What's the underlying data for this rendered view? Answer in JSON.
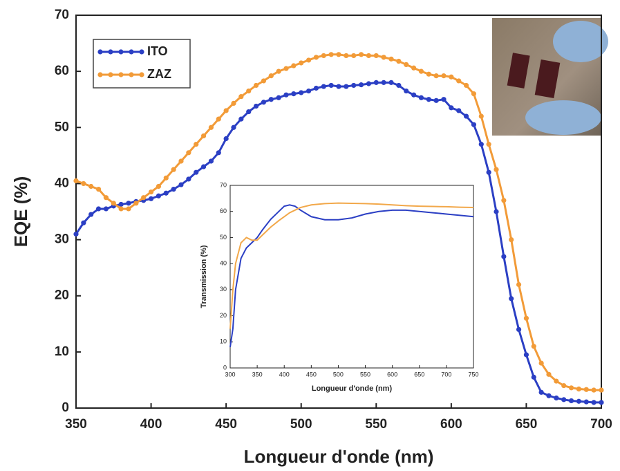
{
  "chart_data": [
    {
      "type": "line",
      "markers": true,
      "x_label": "Longueur d'onde (nm)",
      "y_label": "EQE (%)",
      "legend": "upper left",
      "x": [
        350,
        355,
        360,
        365,
        370,
        375,
        380,
        385,
        390,
        395,
        400,
        405,
        410,
        415,
        420,
        425,
        430,
        435,
        440,
        445,
        450,
        455,
        460,
        465,
        470,
        475,
        480,
        485,
        490,
        495,
        500,
        505,
        510,
        515,
        520,
        525,
        530,
        535,
        540,
        545,
        550,
        555,
        560,
        565,
        570,
        575,
        580,
        585,
        590,
        595,
        600,
        605,
        610,
        615,
        620,
        625,
        630,
        635,
        640,
        645,
        650,
        655,
        660,
        665,
        670,
        675,
        680,
        685,
        690,
        695,
        700
      ],
      "series": [
        {
          "name": "ITO",
          "color": "#2b3fc4",
          "values": [
            31,
            33,
            34.5,
            35.5,
            35.5,
            36,
            36.3,
            36.5,
            36.8,
            37,
            37.3,
            37.8,
            38.3,
            39,
            39.8,
            40.8,
            42,
            43,
            44,
            45.5,
            48,
            50,
            51.5,
            52.8,
            53.8,
            54.5,
            55,
            55.3,
            55.8,
            56,
            56.2,
            56.5,
            57,
            57.3,
            57.5,
            57.3,
            57.3,
            57.5,
            57.6,
            57.8,
            58,
            58,
            58,
            57.5,
            56.5,
            55.8,
            55.3,
            55,
            54.8,
            55,
            53.5,
            53,
            52,
            50.5,
            47,
            42,
            35,
            27,
            19.5,
            14,
            9.5,
            5.5,
            2.8,
            2.2,
            1.8,
            1.5,
            1.3,
            1.2,
            1.1,
            1,
            1
          ]
        },
        {
          "name": "ZAZ",
          "color": "#f29b38",
          "values": [
            40.5,
            40,
            39.5,
            39,
            37.5,
            36.5,
            35.5,
            35.5,
            36.5,
            37.5,
            38.5,
            39.5,
            41,
            42.5,
            44,
            45.5,
            47,
            48.5,
            50,
            51.5,
            53,
            54.3,
            55.5,
            56.5,
            57.5,
            58.3,
            59.2,
            60,
            60.5,
            61,
            61.5,
            62,
            62.5,
            62.8,
            63,
            63,
            62.8,
            62.8,
            63,
            62.8,
            62.8,
            62.5,
            62.2,
            61.8,
            61.2,
            60.6,
            60,
            59.5,
            59.2,
            59.2,
            59,
            58.3,
            57.5,
            56,
            52,
            47,
            42.5,
            37,
            30,
            22,
            16,
            11,
            8,
            6,
            4.8,
            4,
            3.6,
            3.4,
            3.3,
            3.2,
            3.2
          ]
        }
      ],
      "xlim": [
        350,
        700
      ],
      "ylim": [
        0,
        70
      ],
      "xticks": [
        350,
        400,
        450,
        500,
        550,
        600,
        650,
        700
      ],
      "yticks": [
        0,
        10,
        20,
        30,
        40,
        50,
        60,
        70
      ]
    },
    {
      "type": "line",
      "markers": false,
      "x_label": "Longueur d'onde (nm)",
      "y_label": "Transmission (%)",
      "x": [
        300,
        305,
        310,
        320,
        330,
        340,
        350,
        360,
        375,
        390,
        400,
        410,
        420,
        430,
        450,
        475,
        500,
        525,
        550,
        575,
        600,
        625,
        650,
        675,
        700,
        725,
        750
      ],
      "series": [
        {
          "color": "#2b3fc4",
          "values": [
            8,
            15,
            30,
            42,
            46,
            48,
            50,
            53,
            57,
            60,
            62,
            62.5,
            62,
            60.5,
            58,
            56.8,
            56.8,
            57.5,
            59,
            60,
            60.5,
            60.5,
            60,
            59.5,
            59,
            58.5,
            58
          ]
        },
        {
          "color": "#f2a84a",
          "values": [
            15,
            30,
            40,
            48,
            50,
            49,
            49,
            51,
            54,
            56.5,
            58,
            59.5,
            60.5,
            61.5,
            62.5,
            63,
            63.2,
            63.1,
            63,
            62.8,
            62.5,
            62.2,
            62,
            61.9,
            61.8,
            61.6,
            61.5
          ]
        }
      ],
      "xlim": [
        300,
        750
      ],
      "ylim": [
        0,
        70
      ],
      "xticks": [
        300,
        350,
        400,
        450,
        500,
        550,
        600,
        650,
        700,
        750
      ],
      "yticks": [
        0,
        10,
        20,
        30,
        40,
        50,
        60,
        70
      ]
    }
  ]
}
